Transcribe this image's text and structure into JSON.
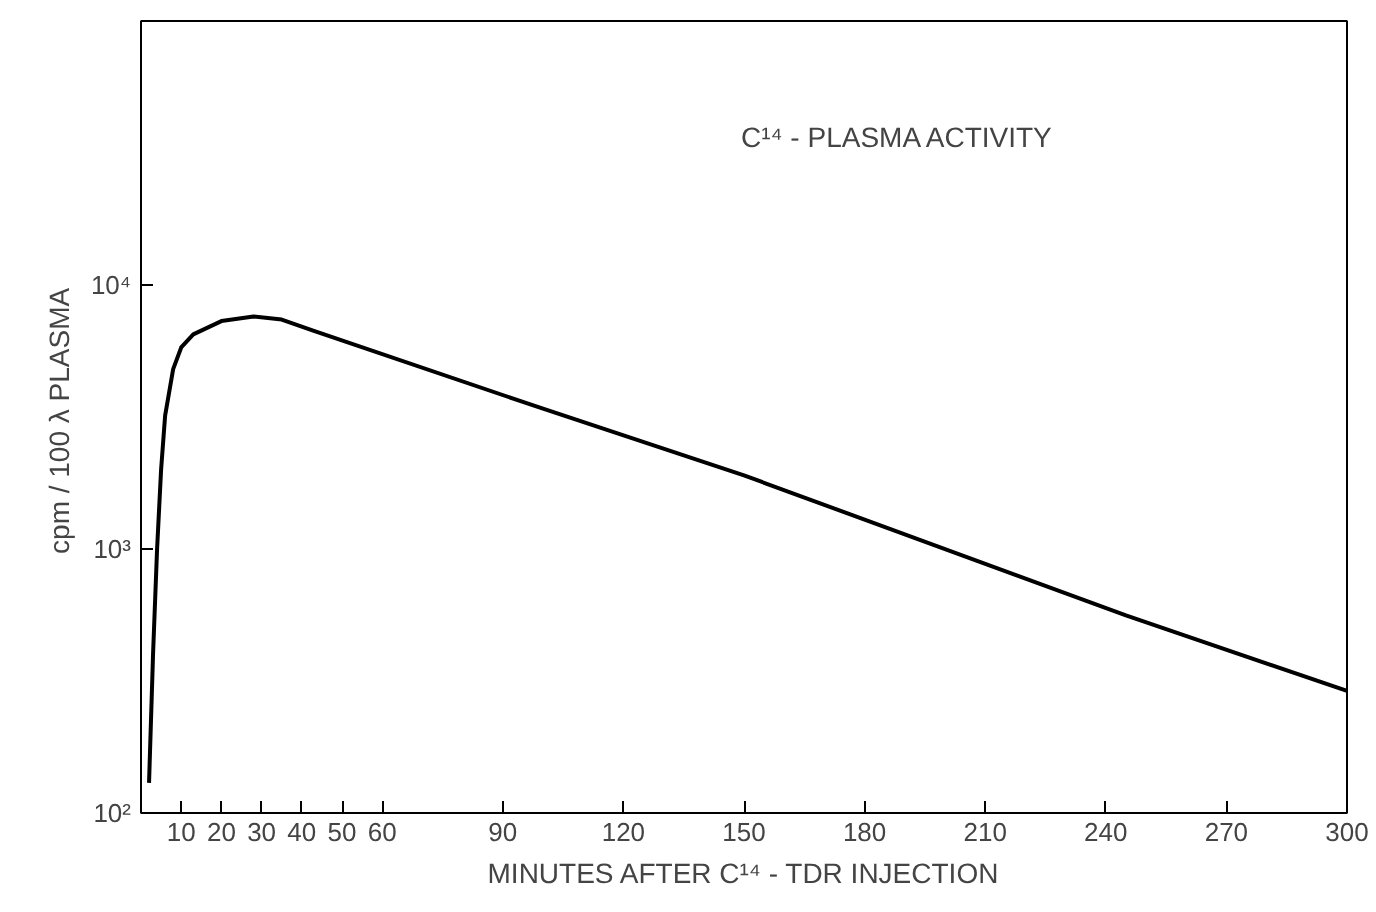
{
  "chart_data": {
    "type": "line",
    "xlabel": "MINUTES AFTER C¹⁴ - TDR INJECTION",
    "ylabel": "cpm / 100 λ  PLASMA",
    "annotations": [
      "C¹⁴ - PLASMA ACTIVITY"
    ],
    "x": [
      2,
      3,
      4,
      5,
      6,
      8,
      10,
      13,
      20,
      28,
      35,
      43,
      100,
      150,
      245,
      300
    ],
    "series": [
      {
        "color": "#000000",
        "values": [
          130,
          400,
          1000,
          2000,
          3200,
          4800,
          5800,
          6500,
          7300,
          7600,
          7400,
          6700,
          3400,
          1900,
          560,
          290
        ]
      }
    ],
    "log": "y",
    "xlim": [
      0,
      300
    ],
    "ylim": [
      100,
      100000
    ],
    "xticks": [
      10,
      20,
      30,
      40,
      50,
      60,
      90,
      120,
      150,
      180,
      210,
      240,
      270,
      300
    ],
    "yticks": [
      {
        "value": 100,
        "label": "10²"
      },
      {
        "value": 1000,
        "label": "10³"
      },
      {
        "value": 10000,
        "label": "10⁴"
      }
    ],
    "grid": false,
    "marker": "none",
    "line_style": "solid"
  }
}
